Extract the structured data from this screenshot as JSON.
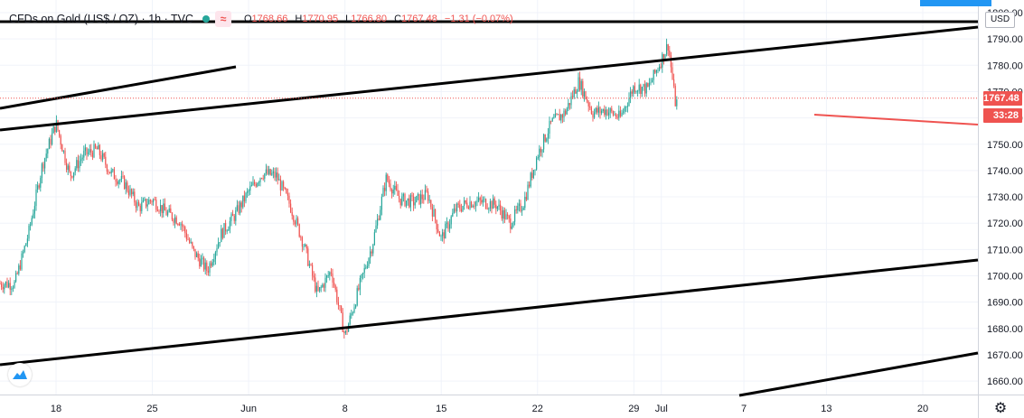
{
  "legend": {
    "symbol": "CFDs on Gold (US$ / OZ) · 1h · TVC",
    "open_label": "O",
    "open": "1768.66",
    "high_label": "H",
    "high": "1770.95",
    "low_label": "L",
    "low": "1766.80",
    "close_label": "C",
    "close": "1767.48",
    "change": "−1.31 (−0.07%)",
    "icons": [
      "market-open-dot-icon",
      "wave-indicator-icon"
    ]
  },
  "axis": {
    "currency": "USD",
    "current_price": "1767.48",
    "countdown": "33:28"
  },
  "colors": {
    "up": "#26a69a",
    "down": "#ef5350",
    "trendline": "#000000",
    "price_line": "#ef5350",
    "accent": "#2196f3"
  },
  "chart_data": {
    "type": "candlestick",
    "title": "CFDs on Gold (US$ / OZ) · 1h · TVC",
    "y_tick_labels": [
      "1800.00",
      "1790.00",
      "1780.00",
      "1770.00",
      "1760.00",
      "1750.00",
      "1740.00",
      "1730.00",
      "1720.00",
      "1710.00",
      "1700.00",
      "1690.00",
      "1680.00",
      "1670.00",
      "1660.00"
    ],
    "x_tick_labels": [
      "18",
      "25",
      "Jun",
      "8",
      "15",
      "22",
      "29",
      "Jul",
      "7",
      "13",
      "20"
    ],
    "ylim": [
      1656,
      1802
    ],
    "current_price": 1767.48,
    "grid": true,
    "price_path": [
      {
        "date": "May 15",
        "price": 1697
      },
      {
        "date": "May 16",
        "price": 1716
      },
      {
        "date": "May 17",
        "price": 1742
      },
      {
        "date": "May 18",
        "price": 1758
      },
      {
        "date": "May 19",
        "price": 1738
      },
      {
        "date": "May 20",
        "price": 1746
      },
      {
        "date": "May 21",
        "price": 1748
      },
      {
        "date": "May 22",
        "price": 1739
      },
      {
        "date": "May 23",
        "price": 1735
      },
      {
        "date": "May 24",
        "price": 1726
      },
      {
        "date": "May 25",
        "price": 1729
      },
      {
        "date": "May 26",
        "price": 1724
      },
      {
        "date": "May 27",
        "price": 1721
      },
      {
        "date": "May 28",
        "price": 1709
      },
      {
        "date": "May 29",
        "price": 1702
      },
      {
        "date": "May 30",
        "price": 1716
      },
      {
        "date": "May 31",
        "price": 1723
      },
      {
        "date": "Jun 1",
        "price": 1732
      },
      {
        "date": "Jun 2",
        "price": 1739
      },
      {
        "date": "Jun 3",
        "price": 1738
      },
      {
        "date": "Jun 4",
        "price": 1727
      },
      {
        "date": "Jun 5",
        "price": 1712
      },
      {
        "date": "Jun 6",
        "price": 1693
      },
      {
        "date": "Jun 7",
        "price": 1702
      },
      {
        "date": "Jun 8",
        "price": 1677
      },
      {
        "date": "Jun 9",
        "price": 1695
      },
      {
        "date": "Jun 10",
        "price": 1712
      },
      {
        "date": "Jun 11",
        "price": 1737
      },
      {
        "date": "Jun 12",
        "price": 1729
      },
      {
        "date": "Jun 13",
        "price": 1728
      },
      {
        "date": "Jun 14",
        "price": 1731
      },
      {
        "date": "Jun 15",
        "price": 1714
      },
      {
        "date": "Jun 16",
        "price": 1725
      },
      {
        "date": "Jun 17",
        "price": 1728
      },
      {
        "date": "Jun 18",
        "price": 1728
      },
      {
        "date": "Jun 19",
        "price": 1727
      },
      {
        "date": "Jun 20",
        "price": 1720
      },
      {
        "date": "Jun 21",
        "price": 1728
      },
      {
        "date": "Jun 22",
        "price": 1746
      },
      {
        "date": "Jun 23",
        "price": 1758
      },
      {
        "date": "Jun 24",
        "price": 1762
      },
      {
        "date": "Jun 25",
        "price": 1774
      },
      {
        "date": "Jun 26",
        "price": 1762
      },
      {
        "date": "Jun 27",
        "price": 1763
      },
      {
        "date": "Jun 28",
        "price": 1760
      },
      {
        "date": "Jun 29",
        "price": 1772
      },
      {
        "date": "Jun 30",
        "price": 1771
      },
      {
        "date": "Jul 1",
        "price": 1782
      },
      {
        "date": "Jul 1 12:00",
        "price": 1788
      },
      {
        "date": "Jul 2",
        "price": 1766
      }
    ]
  }
}
